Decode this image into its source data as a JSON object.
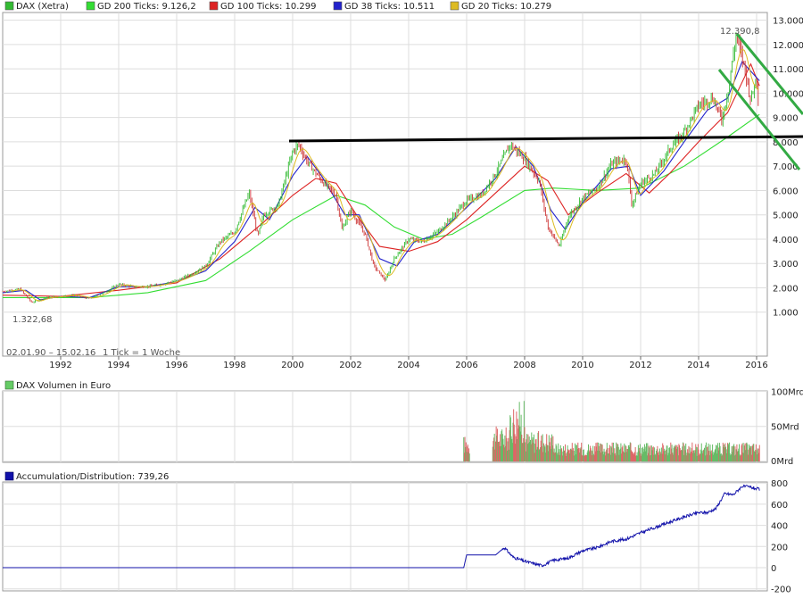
{
  "legend": [
    {
      "label": "DAX (Xetra)",
      "color": "#33bb33"
    },
    {
      "label": "GD 200 Ticks: 9.126,2",
      "color": "#33dd33"
    },
    {
      "label": "GD 100 Ticks: 10.299",
      "color": "#dd2222"
    },
    {
      "label": "GD 38 Ticks: 10.511",
      "color": "#2222cc"
    },
    {
      "label": "GD 20 Ticks: 10.279",
      "color": "#ddbb22"
    }
  ],
  "annotations": {
    "high_label": "12.390,8",
    "low_label": "1.322,68",
    "range_label": "02.01.90 – 15.02.16",
    "tick_label": "1 Tick = 1 Woche"
  },
  "volume_panel": {
    "title": "DAX Volumen in Euro",
    "legend_color": "#66cc66",
    "ticks": [
      "100Mrd",
      "50Mrd",
      "0Mrd"
    ]
  },
  "ad_panel": {
    "title": "Accumulation/Distribution: 739,26",
    "legend_color": "#1111aa",
    "ticks": [
      "800",
      "600",
      "400",
      "200",
      "0",
      "-200"
    ]
  },
  "colors": {
    "up": "#33bb33",
    "down": "#cc3333",
    "gd200": "#33dd33",
    "gd100": "#dd2222",
    "gd38": "#2222cc",
    "gd20": "#ddbb22",
    "trend": "#000000",
    "channel": "#33aa44",
    "vol_up": "#66bb66",
    "vol_down": "#dd6666",
    "ad": "#1111aa",
    "grid": "#dddddd"
  },
  "chart_data": [
    {
      "type": "line",
      "title": "DAX (Xetra)",
      "x_ticks": [
        "1992",
        "1994",
        "1996",
        "1998",
        "2000",
        "2002",
        "2004",
        "2006",
        "2008",
        "2010",
        "2012",
        "2014",
        "2016"
      ],
      "y_ticks": [
        "13.000",
        "12.000",
        "11.000",
        "10.000",
        "9.000",
        "8.000",
        "7.000",
        "6.000",
        "5.000",
        "4.000",
        "3.000",
        "2.000",
        "1.000"
      ],
      "ylim": [
        0,
        13300
      ],
      "xlim": [
        1990.0,
        2016.2
      ],
      "series": [
        {
          "name": "DAX (Xetra)",
          "points": [
            [
              1990.0,
              1850
            ],
            [
              1990.6,
              1950
            ],
            [
              1991.0,
              1400
            ],
            [
              1991.5,
              1600
            ],
            [
              1992.0,
              1650
            ],
            [
              1992.5,
              1700
            ],
            [
              1993.0,
              1550
            ],
            [
              1993.5,
              1800
            ],
            [
              1994.0,
              2150
            ],
            [
              1994.5,
              2050
            ],
            [
              1995.0,
              2050
            ],
            [
              1995.5,
              2150
            ],
            [
              1996.0,
              2300
            ],
            [
              1996.5,
              2550
            ],
            [
              1997.0,
              2900
            ],
            [
              1997.5,
              3900
            ],
            [
              1998.0,
              4300
            ],
            [
              1998.5,
              5900
            ],
            [
              1998.8,
              4100
            ],
            [
              1999.0,
              5000
            ],
            [
              1999.5,
              5400
            ],
            [
              2000.0,
              7600
            ],
            [
              2000.2,
              7900
            ],
            [
              2000.5,
              7200
            ],
            [
              2001.0,
              6400
            ],
            [
              2001.5,
              5800
            ],
            [
              2001.7,
              4400
            ],
            [
              2002.0,
              5200
            ],
            [
              2002.5,
              4200
            ],
            [
              2002.8,
              2900
            ],
            [
              2003.2,
              2300
            ],
            [
              2003.5,
              3200
            ],
            [
              2004.0,
              4000
            ],
            [
              2004.5,
              3900
            ],
            [
              2005.0,
              4300
            ],
            [
              2005.5,
              4900
            ],
            [
              2006.0,
              5600
            ],
            [
              2006.5,
              5800
            ],
            [
              2007.0,
              6700
            ],
            [
              2007.5,
              7900
            ],
            [
              2008.0,
              7300
            ],
            [
              2008.5,
              6400
            ],
            [
              2008.8,
              4500
            ],
            [
              2009.2,
              3700
            ],
            [
              2009.5,
              4900
            ],
            [
              2010.0,
              5700
            ],
            [
              2010.5,
              6100
            ],
            [
              2011.0,
              7100
            ],
            [
              2011.5,
              7300
            ],
            [
              2011.7,
              5400
            ],
            [
              2012.0,
              6300
            ],
            [
              2012.5,
              6700
            ],
            [
              2013.0,
              7700
            ],
            [
              2013.5,
              8400
            ],
            [
              2014.0,
              9500
            ],
            [
              2014.5,
              9800
            ],
            [
              2014.8,
              8900
            ],
            [
              2015.0,
              10000
            ],
            [
              2015.3,
              12390
            ],
            [
              2015.6,
              11000
            ],
            [
              2015.8,
              9700
            ],
            [
              2016.0,
              10700
            ],
            [
              2016.1,
              9000
            ]
          ]
        },
        {
          "name": "GD 200 Ticks",
          "points": [
            [
              1990.0,
              1600
            ],
            [
              1993.0,
              1600
            ],
            [
              1995.0,
              1800
            ],
            [
              1997.0,
              2300
            ],
            [
              1998.5,
              3500
            ],
            [
              2000.0,
              4800
            ],
            [
              2001.5,
              5800
            ],
            [
              2002.5,
              5400
            ],
            [
              2003.5,
              4500
            ],
            [
              2004.5,
              4000
            ],
            [
              2005.5,
              4200
            ],
            [
              2006.5,
              4900
            ],
            [
              2008.0,
              6000
            ],
            [
              2009.0,
              6100
            ],
            [
              2010.5,
              6000
            ],
            [
              2012.0,
              6100
            ],
            [
              2013.5,
              7000
            ],
            [
              2015.0,
              8200
            ],
            [
              2016.1,
              9126
            ]
          ]
        },
        {
          "name": "GD 100 Ticks",
          "points": [
            [
              1990.0,
              1700
            ],
            [
              1992.0,
              1650
            ],
            [
              1994.0,
              1900
            ],
            [
              1996.0,
              2200
            ],
            [
              1997.5,
              3200
            ],
            [
              1999.0,
              4700
            ],
            [
              2000.0,
              5800
            ],
            [
              2000.8,
              6500
            ],
            [
              2001.5,
              6300
            ],
            [
              2002.2,
              5000
            ],
            [
              2003.0,
              3700
            ],
            [
              2004.0,
              3500
            ],
            [
              2005.0,
              3900
            ],
            [
              2006.0,
              4800
            ],
            [
              2007.0,
              5900
            ],
            [
              2008.0,
              7000
            ],
            [
              2008.8,
              6400
            ],
            [
              2009.5,
              5000
            ],
            [
              2010.5,
              5900
            ],
            [
              2011.5,
              6700
            ],
            [
              2012.3,
              5900
            ],
            [
              2013.0,
              6700
            ],
            [
              2014.0,
              8000
            ],
            [
              2015.0,
              9200
            ],
            [
              2015.8,
              11200
            ],
            [
              2016.1,
              10299
            ]
          ]
        },
        {
          "name": "GD 38 Ticks",
          "points": [
            [
              1990.0,
              1800
            ],
            [
              1990.8,
              1900
            ],
            [
              1991.3,
              1500
            ],
            [
              1992.0,
              1650
            ],
            [
              1993.0,
              1600
            ],
            [
              1994.0,
              2050
            ],
            [
              1995.0,
              2050
            ],
            [
              1996.0,
              2250
            ],
            [
              1997.0,
              2700
            ],
            [
              1998.0,
              3900
            ],
            [
              1998.7,
              5300
            ],
            [
              1999.2,
              4800
            ],
            [
              2000.0,
              6600
            ],
            [
              2000.5,
              7400
            ],
            [
              2001.0,
              6600
            ],
            [
              2001.8,
              5000
            ],
            [
              2002.3,
              5000
            ],
            [
              2003.0,
              3200
            ],
            [
              2003.6,
              2900
            ],
            [
              2004.2,
              3900
            ],
            [
              2005.0,
              4200
            ],
            [
              2006.0,
              5300
            ],
            [
              2007.0,
              6500
            ],
            [
              2007.7,
              7800
            ],
            [
              2008.3,
              7000
            ],
            [
              2008.9,
              5200
            ],
            [
              2009.4,
              4400
            ],
            [
              2010.0,
              5500
            ],
            [
              2011.0,
              6900
            ],
            [
              2011.6,
              7000
            ],
            [
              2012.0,
              5800
            ],
            [
              2012.8,
              6800
            ],
            [
              2013.5,
              8000
            ],
            [
              2014.3,
              9300
            ],
            [
              2015.0,
              9800
            ],
            [
              2015.5,
              11300
            ],
            [
              2016.1,
              10511
            ]
          ]
        }
      ]
    },
    {
      "type": "bar",
      "title": "DAX Volumen in Euro",
      "ylim": [
        0,
        100
      ],
      "segments": [
        {
          "x_from": 2005.9,
          "x_to": 2006.1,
          "approx_level": 30
        },
        {
          "x_from": 2006.9,
          "x_to": 2007.5,
          "approx_level": 40
        },
        {
          "x_from": 2007.5,
          "x_to": 2008.0,
          "approx_level": 70
        },
        {
          "x_from": 2008.0,
          "x_to": 2009.0,
          "approx_level": 35
        },
        {
          "x_from": 2009.0,
          "x_to": 2016.1,
          "approx_level": 22
        }
      ]
    },
    {
      "type": "line",
      "title": "Accumulation/Distribution: 739,26",
      "ylim": [
        -200,
        800
      ],
      "series": [
        {
          "name": "Accumulation/Distribution",
          "points": [
            [
              1990.0,
              0
            ],
            [
              2005.9,
              0
            ],
            [
              2006.0,
              120
            ],
            [
              2007.0,
              120
            ],
            [
              2007.3,
              190
            ],
            [
              2007.6,
              100
            ],
            [
              2008.0,
              60
            ],
            [
              2008.6,
              20
            ],
            [
              2009.0,
              70
            ],
            [
              2009.5,
              90
            ],
            [
              2010.0,
              160
            ],
            [
              2010.5,
              190
            ],
            [
              2011.0,
              250
            ],
            [
              2011.5,
              270
            ],
            [
              2012.0,
              330
            ],
            [
              2012.5,
              380
            ],
            [
              2013.0,
              430
            ],
            [
              2013.5,
              480
            ],
            [
              2014.0,
              520
            ],
            [
              2014.3,
              520
            ],
            [
              2014.6,
              560
            ],
            [
              2014.9,
              700
            ],
            [
              2015.2,
              690
            ],
            [
              2015.5,
              770
            ],
            [
              2015.8,
              760
            ],
            [
              2016.1,
              739
            ]
          ]
        }
      ]
    }
  ]
}
